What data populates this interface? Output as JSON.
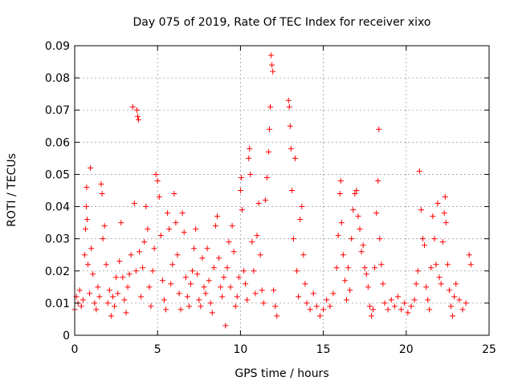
{
  "chart_data": {
    "type": "scatter",
    "title": "Day 075 of 2019, Rate Of TEC Index for receiver xixo",
    "xlabel": "GPS time / hours",
    "ylabel": "ROTI / TECUs",
    "xlim": [
      0,
      25
    ],
    "ylim": [
      0,
      0.09
    ],
    "x_ticks": [
      "0",
      "5",
      "10",
      "15",
      "20",
      "25"
    ],
    "y_ticks": [
      "0",
      "0.01",
      "0.02",
      "0.03",
      "0.04",
      "0.05",
      "0.06",
      "0.07",
      "0.08",
      "0.09"
    ],
    "grid": true,
    "marker": "+",
    "color": "#ff0000",
    "series": [
      {
        "points": [
          [
            0.0,
            0.008
          ],
          [
            0.1,
            0.012
          ],
          [
            0.2,
            0.01
          ],
          [
            0.3,
            0.014
          ],
          [
            0.4,
            0.009
          ],
          [
            0.5,
            0.011
          ],
          [
            0.6,
            0.025
          ],
          [
            0.65,
            0.033
          ],
          [
            0.7,
            0.04
          ],
          [
            0.72,
            0.046
          ],
          [
            0.75,
            0.036
          ],
          [
            0.8,
            0.022
          ],
          [
            0.9,
            0.013
          ],
          [
            0.95,
            0.052
          ],
          [
            1.0,
            0.027
          ],
          [
            1.1,
            0.019
          ],
          [
            1.2,
            0.01
          ],
          [
            1.3,
            0.008
          ],
          [
            1.4,
            0.015
          ],
          [
            1.5,
            0.012
          ],
          [
            1.6,
            0.047
          ],
          [
            1.65,
            0.044
          ],
          [
            1.7,
            0.03
          ],
          [
            1.8,
            0.034
          ],
          [
            1.9,
            0.022
          ],
          [
            2.0,
            0.01
          ],
          [
            2.1,
            0.014
          ],
          [
            2.2,
            0.006
          ],
          [
            2.3,
            0.012
          ],
          [
            2.4,
            0.009
          ],
          [
            2.5,
            0.018
          ],
          [
            2.6,
            0.013
          ],
          [
            2.7,
            0.023
          ],
          [
            2.8,
            0.035
          ],
          [
            2.9,
            0.018
          ],
          [
            3.0,
            0.011
          ],
          [
            3.1,
            0.007
          ],
          [
            3.2,
            0.015
          ],
          [
            3.3,
            0.019
          ],
          [
            3.4,
            0.025
          ],
          [
            3.5,
            0.071
          ],
          [
            3.6,
            0.041
          ],
          [
            3.7,
            0.02
          ],
          [
            3.75,
            0.07
          ],
          [
            3.8,
            0.068
          ],
          [
            3.85,
            0.067
          ],
          [
            3.9,
            0.026
          ],
          [
            4.0,
            0.012
          ],
          [
            4.1,
            0.021
          ],
          [
            4.2,
            0.029
          ],
          [
            4.3,
            0.04
          ],
          [
            4.4,
            0.033
          ],
          [
            4.5,
            0.015
          ],
          [
            4.6,
            0.009
          ],
          [
            4.7,
            0.02
          ],
          [
            4.8,
            0.027
          ],
          [
            4.9,
            0.05
          ],
          [
            5.0,
            0.048
          ],
          [
            5.1,
            0.043
          ],
          [
            5.2,
            0.031
          ],
          [
            5.3,
            0.017
          ],
          [
            5.4,
            0.011
          ],
          [
            5.5,
            0.008
          ],
          [
            5.6,
            0.038
          ],
          [
            5.7,
            0.033
          ],
          [
            5.8,
            0.016
          ],
          [
            5.9,
            0.022
          ],
          [
            6.0,
            0.044
          ],
          [
            6.1,
            0.035
          ],
          [
            6.2,
            0.025
          ],
          [
            6.3,
            0.013
          ],
          [
            6.4,
            0.008
          ],
          [
            6.5,
            0.038
          ],
          [
            6.6,
            0.032
          ],
          [
            6.7,
            0.018
          ],
          [
            6.8,
            0.012
          ],
          [
            6.9,
            0.009
          ],
          [
            7.0,
            0.016
          ],
          [
            7.1,
            0.02
          ],
          [
            7.2,
            0.027
          ],
          [
            7.3,
            0.033
          ],
          [
            7.4,
            0.019
          ],
          [
            7.5,
            0.011
          ],
          [
            7.6,
            0.009
          ],
          [
            7.7,
            0.024
          ],
          [
            7.8,
            0.015
          ],
          [
            7.9,
            0.013
          ],
          [
            8.0,
            0.027
          ],
          [
            8.1,
            0.017
          ],
          [
            8.2,
            0.01
          ],
          [
            8.3,
            0.007
          ],
          [
            8.4,
            0.021
          ],
          [
            8.5,
            0.034
          ],
          [
            8.6,
            0.037
          ],
          [
            8.7,
            0.024
          ],
          [
            8.8,
            0.015
          ],
          [
            8.9,
            0.012
          ],
          [
            9.0,
            0.018
          ],
          [
            9.1,
            0.003
          ],
          [
            9.2,
            0.021
          ],
          [
            9.3,
            0.029
          ],
          [
            9.4,
            0.015
          ],
          [
            9.5,
            0.034
          ],
          [
            9.6,
            0.026
          ],
          [
            9.7,
            0.009
          ],
          [
            9.8,
            0.012
          ],
          [
            9.9,
            0.018
          ],
          [
            10.0,
            0.045
          ],
          [
            10.05,
            0.049
          ],
          [
            10.1,
            0.039
          ],
          [
            10.2,
            0.02
          ],
          [
            10.3,
            0.016
          ],
          [
            10.4,
            0.011
          ],
          [
            10.5,
            0.055
          ],
          [
            10.55,
            0.058
          ],
          [
            10.6,
            0.05
          ],
          [
            10.7,
            0.029
          ],
          [
            10.8,
            0.02
          ],
          [
            10.9,
            0.013
          ],
          [
            11.0,
            0.031
          ],
          [
            11.1,
            0.041
          ],
          [
            11.2,
            0.025
          ],
          [
            11.3,
            0.014
          ],
          [
            11.4,
            0.01
          ],
          [
            11.5,
            0.042
          ],
          [
            11.6,
            0.049
          ],
          [
            11.7,
            0.057
          ],
          [
            11.75,
            0.064
          ],
          [
            11.8,
            0.071
          ],
          [
            11.85,
            0.087
          ],
          [
            11.9,
            0.084
          ],
          [
            11.95,
            0.082
          ],
          [
            12.0,
            0.014
          ],
          [
            12.1,
            0.009
          ],
          [
            12.2,
            0.006
          ],
          [
            12.9,
            0.073
          ],
          [
            12.95,
            0.071
          ],
          [
            13.0,
            0.065
          ],
          [
            13.05,
            0.058
          ],
          [
            13.1,
            0.045
          ],
          [
            13.2,
            0.03
          ],
          [
            13.3,
            0.055
          ],
          [
            13.4,
            0.02
          ],
          [
            13.5,
            0.012
          ],
          [
            13.6,
            0.036
          ],
          [
            13.7,
            0.04
          ],
          [
            13.8,
            0.025
          ],
          [
            13.9,
            0.016
          ],
          [
            14.0,
            0.01
          ],
          [
            14.2,
            0.008
          ],
          [
            14.4,
            0.013
          ],
          [
            14.6,
            0.009
          ],
          [
            14.8,
            0.006
          ],
          [
            15.0,
            0.008
          ],
          [
            15.2,
            0.011
          ],
          [
            15.4,
            0.009
          ],
          [
            15.6,
            0.013
          ],
          [
            15.8,
            0.021
          ],
          [
            15.9,
            0.031
          ],
          [
            16.0,
            0.044
          ],
          [
            16.05,
            0.048
          ],
          [
            16.1,
            0.035
          ],
          [
            16.2,
            0.025
          ],
          [
            16.3,
            0.017
          ],
          [
            16.4,
            0.011
          ],
          [
            16.5,
            0.021
          ],
          [
            16.6,
            0.014
          ],
          [
            16.7,
            0.03
          ],
          [
            16.8,
            0.039
          ],
          [
            16.9,
            0.044
          ],
          [
            17.0,
            0.045
          ],
          [
            17.1,
            0.037
          ],
          [
            17.2,
            0.033
          ],
          [
            17.3,
            0.026
          ],
          [
            17.4,
            0.028
          ],
          [
            17.5,
            0.021
          ],
          [
            17.6,
            0.019
          ],
          [
            17.7,
            0.015
          ],
          [
            17.8,
            0.009
          ],
          [
            17.9,
            0.006
          ],
          [
            18.0,
            0.008
          ],
          [
            18.1,
            0.021
          ],
          [
            18.2,
            0.038
          ],
          [
            18.3,
            0.048
          ],
          [
            18.35,
            0.064
          ],
          [
            18.4,
            0.03
          ],
          [
            18.5,
            0.022
          ],
          [
            18.6,
            0.016
          ],
          [
            18.7,
            0.01
          ],
          [
            18.9,
            0.008
          ],
          [
            19.1,
            0.011
          ],
          [
            19.3,
            0.009
          ],
          [
            19.5,
            0.012
          ],
          [
            19.7,
            0.008
          ],
          [
            19.9,
            0.01
          ],
          [
            20.1,
            0.007
          ],
          [
            20.3,
            0.009
          ],
          [
            20.5,
            0.011
          ],
          [
            20.6,
            0.016
          ],
          [
            20.7,
            0.02
          ],
          [
            20.8,
            0.051
          ],
          [
            20.9,
            0.039
          ],
          [
            21.0,
            0.03
          ],
          [
            21.1,
            0.028
          ],
          [
            21.2,
            0.015
          ],
          [
            21.3,
            0.011
          ],
          [
            21.4,
            0.008
          ],
          [
            21.5,
            0.021
          ],
          [
            21.6,
            0.037
          ],
          [
            21.7,
            0.03
          ],
          [
            21.8,
            0.022
          ],
          [
            21.9,
            0.041
          ],
          [
            22.0,
            0.018
          ],
          [
            22.1,
            0.016
          ],
          [
            22.2,
            0.029
          ],
          [
            22.3,
            0.038
          ],
          [
            22.35,
            0.043
          ],
          [
            22.4,
            0.035
          ],
          [
            22.5,
            0.022
          ],
          [
            22.6,
            0.014
          ],
          [
            22.7,
            0.009
          ],
          [
            22.8,
            0.006
          ],
          [
            22.9,
            0.012
          ],
          [
            23.0,
            0.016
          ],
          [
            23.2,
            0.011
          ],
          [
            23.4,
            0.008
          ],
          [
            23.6,
            0.01
          ],
          [
            23.8,
            0.025
          ],
          [
            23.9,
            0.022
          ]
        ]
      }
    ]
  }
}
